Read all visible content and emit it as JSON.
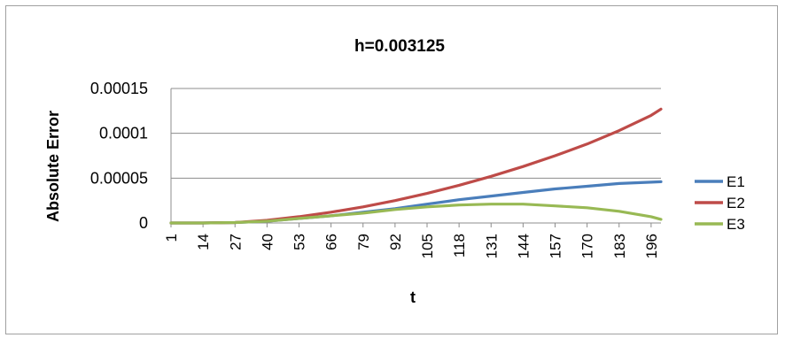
{
  "chart_data": {
    "type": "line",
    "title": "h=0.003125",
    "xlabel": "t",
    "ylabel": "Absolute Error",
    "x_tick_labels": [
      "1",
      "14",
      "27",
      "40",
      "53",
      "66",
      "79",
      "92",
      "105",
      "118",
      "131",
      "144",
      "157",
      "170",
      "183",
      "196"
    ],
    "x_range": [
      1,
      200
    ],
    "y_tick_labels": [
      "0",
      "0.00005",
      "0.0001",
      "0.00015"
    ],
    "ylim": [
      0,
      0.00015
    ],
    "grid": "horizontal",
    "legend_position": "right",
    "x": [
      1,
      14,
      27,
      40,
      53,
      66,
      79,
      92,
      105,
      118,
      131,
      144,
      157,
      170,
      183,
      196,
      200
    ],
    "series": [
      {
        "name": "E1",
        "color": "#4a7ebb",
        "values": [
          0,
          0,
          5e-07,
          2e-06,
          5e-06,
          8e-06,
          1.2e-05,
          1.6e-05,
          2.1e-05,
          2.6e-05,
          3e-05,
          3.4e-05,
          3.8e-05,
          4.1e-05,
          4.4e-05,
          4.55e-05,
          4.6e-05
        ]
      },
      {
        "name": "E2",
        "color": "#be4b48",
        "values": [
          0,
          0,
          5e-07,
          3e-06,
          7e-06,
          1.2e-05,
          1.8e-05,
          2.5e-05,
          3.3e-05,
          4.2e-05,
          5.2e-05,
          6.3e-05,
          7.5e-05,
          8.8e-05,
          0.000103,
          0.00012,
          0.000127
        ]
      },
      {
        "name": "E3",
        "color": "#98b954",
        "values": [
          0,
          0,
          5e-07,
          2e-06,
          5e-06,
          8e-06,
          1.1e-05,
          1.5e-05,
          1.8e-05,
          2e-05,
          2.1e-05,
          2.1e-05,
          1.9e-05,
          1.7e-05,
          1.3e-05,
          7e-06,
          4e-06
        ]
      }
    ]
  }
}
